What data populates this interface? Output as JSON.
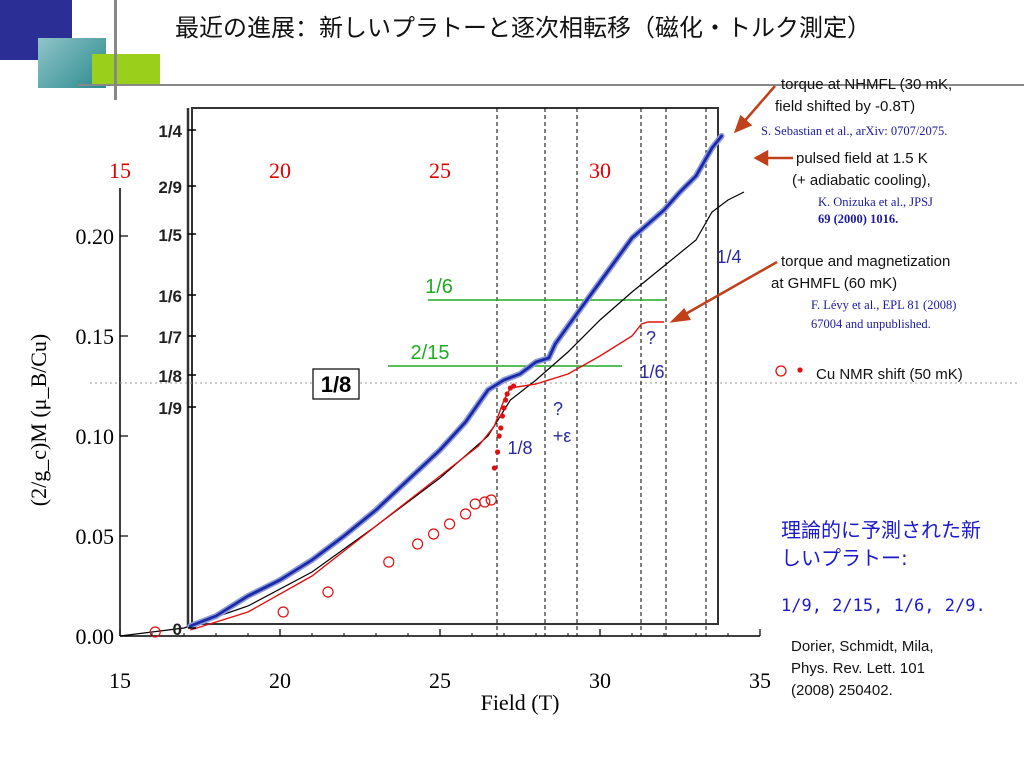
{
  "slide": {
    "title": "最近の進展：新しいプラトーと逐次相転移（磁化・トルク測定）"
  },
  "annotations": {
    "torque_nhmfl": "torque at NHMFL (30 mK,",
    "torque_nhmfl_2": "field shifted by -0.8T)",
    "ref_sebastian": "S. Sebastian et al., arXiv: 0707/2075.",
    "pulsed": "pulsed field at 1.5 K",
    "pulsed_2": "(+ adiabatic cooling),",
    "ref_onizuka": "K. Onizuka et al., JPSJ",
    "ref_onizuka_2": "69 (2000) 1016.",
    "torque_ghmfl": "torque and magnetization",
    "torque_ghmfl_2": "at GHMFL (60 mK)",
    "ref_levy": "F. Lévy et al., EPL 81 (2008)",
    "ref_levy_2": "67004 and unpublished.",
    "nmr": "Cu NMR shift (50 mK)",
    "prediction": "理論的に予測された新しいプラトー:",
    "prediction_values": "1/9, 2/15, 1/6, 2/9.",
    "cite_1": "Dorier, Schmidt, Mila,",
    "cite_2": "Phys. Rev. Lett. 101",
    "cite_3": "(2008) 250402."
  },
  "colors": {
    "torque_blue": "#1a2aa8",
    "pulsed_black": "#000000",
    "ghmfl_red": "#e01010",
    "nmr_red": "#e01010",
    "green_plateau": "#22aa22",
    "label_blue": "#2a2aa0",
    "arrow_brown": "#c0401a",
    "top_ticks_red": "#e00000"
  },
  "chart_data": {
    "type": "line",
    "xlabel": "Field  (T)",
    "ylabel": "(2/g_c)M  (μ_B/Cu)",
    "xlim": [
      15,
      35
    ],
    "ylim": [
      0.0,
      0.225
    ],
    "x_ticks": [
      "15",
      "20",
      "25",
      "30",
      "35"
    ],
    "y_ticks": [
      "0.00",
      "0.05",
      "0.10",
      "0.15",
      "0.20"
    ],
    "top_ticks": [
      "15",
      "20",
      "25",
      "30"
    ],
    "inset_y_ticks": [
      "1/4",
      "2/9",
      "1/5",
      "1/6",
      "1/7",
      "1/8",
      "1/9",
      "0"
    ],
    "plateau_labels": [
      "1/8",
      "1/6",
      "2/15",
      "1/4",
      "1/8",
      "1/6",
      "?",
      "?",
      "+ε"
    ],
    "series": [
      {
        "name": "torque at NHMFL (30 mK, field shifted by -0.8T)",
        "color": "#1a2aa8",
        "x": [
          17.2,
          18.0,
          19.0,
          20.0,
          21.0,
          22.0,
          23.0,
          24.0,
          25.0,
          25.8,
          26.5,
          27.0,
          27.5,
          28.0,
          28.4,
          28.6,
          29.0,
          30.0,
          31.0,
          31.5,
          32.0,
          32.5,
          33.0,
          33.5,
          33.8
        ],
        "y": [
          0.005,
          0.01,
          0.02,
          0.028,
          0.038,
          0.05,
          0.063,
          0.078,
          0.093,
          0.107,
          0.123,
          0.128,
          0.131,
          0.137,
          0.139,
          0.146,
          0.155,
          0.177,
          0.199,
          0.206,
          0.213,
          0.222,
          0.23,
          0.244,
          0.25
        ]
      },
      {
        "name": "pulsed field at 1.5 K (+ adiabatic cooling)",
        "color": "#000000",
        "x": [
          15.0,
          17.0,
          19.0,
          21.0,
          23.0,
          25.0,
          26.5,
          27.2,
          28.0,
          29.0,
          30.0,
          31.0,
          32.0,
          33.0,
          33.5,
          34.0,
          34.5
        ],
        "y": [
          0.0,
          0.004,
          0.015,
          0.032,
          0.055,
          0.079,
          0.1,
          0.118,
          0.128,
          0.142,
          0.158,
          0.172,
          0.185,
          0.198,
          0.212,
          0.218,
          0.222
        ]
      },
      {
        "name": "torque and magnetization at GHMFL (60 mK)",
        "color": "#e01010",
        "x": [
          17.2,
          19.0,
          21.0,
          23.0,
          25.0,
          26.2,
          26.7,
          27.0,
          27.2,
          28.0,
          29.0,
          30.0,
          31.0,
          31.3,
          31.5,
          32.0
        ],
        "y": [
          0.003,
          0.012,
          0.03,
          0.055,
          0.08,
          0.095,
          0.105,
          0.118,
          0.124,
          0.126,
          0.131,
          0.14,
          0.15,
          0.156,
          0.157,
          0.157
        ]
      },
      {
        "name": "Cu NMR shift (50 mK)",
        "color": "#e01010",
        "x": [
          16.1,
          20.1,
          21.5,
          23.4,
          24.3,
          24.8,
          25.3,
          25.8,
          26.1,
          26.4,
          26.6
        ],
        "y": [
          0.002,
          0.012,
          0.022,
          0.037,
          0.046,
          0.051,
          0.056,
          0.061,
          0.066,
          0.067,
          0.068
        ]
      }
    ],
    "grid": "none",
    "legend": "right (text labels with arrows)"
  }
}
